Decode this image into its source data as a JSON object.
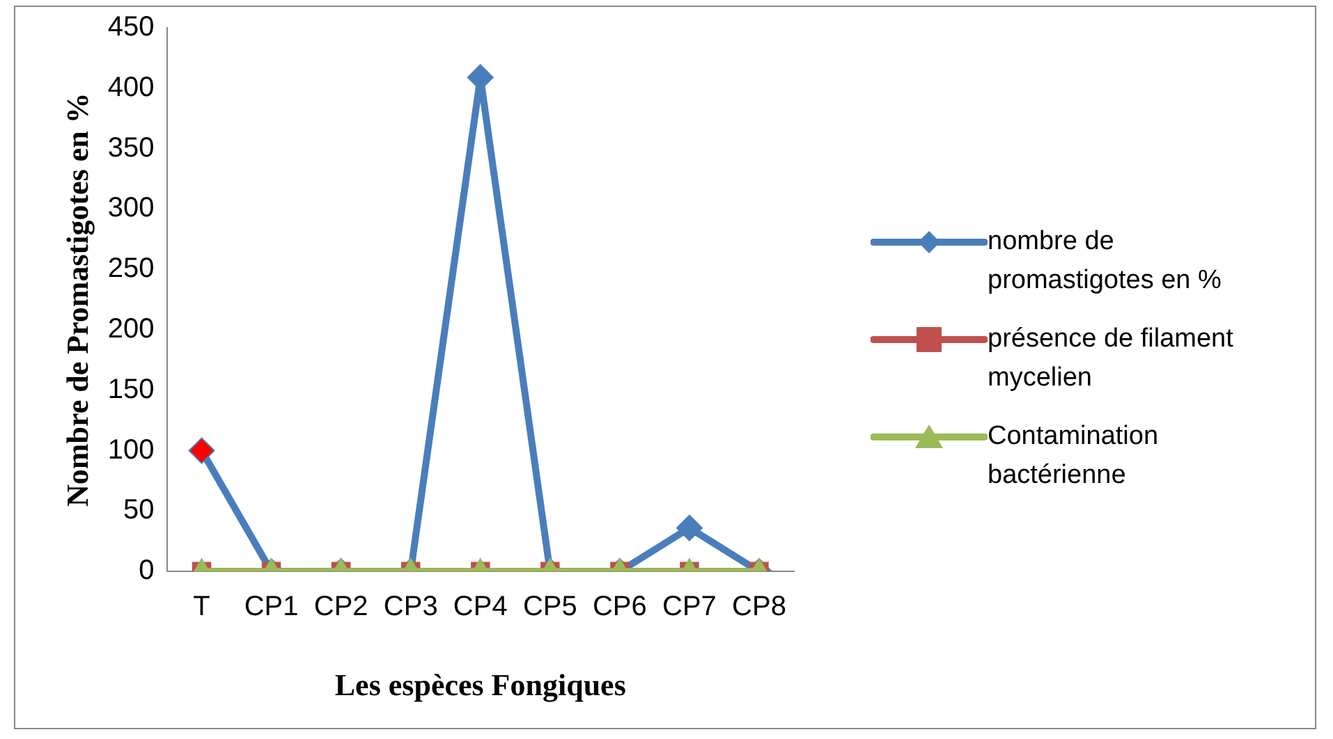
{
  "chart_data": {
    "type": "line",
    "xlabel": "Les espèces Fongiques",
    "ylabel": "Nombre de Promastigotes en %",
    "categories": [
      "T",
      "CP1",
      "CP2",
      "CP3",
      "CP4",
      "CP5",
      "CP6",
      "CP7",
      "CP8"
    ],
    "series": [
      {
        "name": "nombre de promastigotes en %",
        "color": "#4a7ebb",
        "marker": "diamond",
        "colors": [
          "#ff0000",
          "#4a7ebb",
          "#4a7ebb",
          "#4a7ebb",
          "#4a7ebb",
          "#4a7ebb",
          "#4a7ebb",
          "#4a7ebb",
          "#4a7ebb"
        ],
        "values": [
          100,
          0,
          0,
          0,
          409,
          0,
          0,
          36,
          0
        ]
      },
      {
        "name": "présence de filament mycelien",
        "color": "#c0504d",
        "marker": "square",
        "values": [
          0,
          0,
          0,
          0,
          0,
          0,
          0,
          0,
          0
        ]
      },
      {
        "name": "Contamination bactérienne",
        "color": "#9bbb59",
        "marker": "triangle",
        "values": [
          0,
          0,
          0,
          0,
          0,
          0,
          0,
          0,
          0
        ]
      }
    ],
    "ylim": [
      0,
      450
    ],
    "yticks": [
      0,
      50,
      100,
      150,
      200,
      250,
      300,
      350,
      400,
      450
    ],
    "grid": false,
    "legend": "right"
  }
}
